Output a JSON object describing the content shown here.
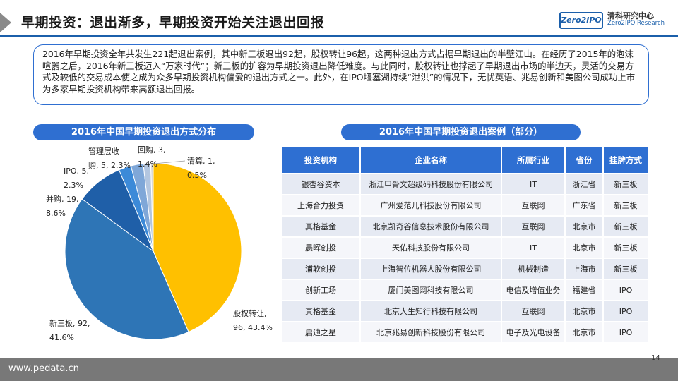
{
  "header": {
    "title": "早期投资：退出渐多，早期投资开始关注退出回报",
    "logo_text": "Zero2IPO",
    "brand_cn": "清科研究中心",
    "brand_en": "Zero2IPO Research"
  },
  "summary": "2016年早期投资全年共发生221起退出案例，其中新三板退出92起，股权转让96起，这两种退出方式占据早期退出的半壁江山。在经历了2015年的泡沫喧嚣之后，2016年新三板迈入“万家时代”；新三板的扩容为早期投资退出降低难度。与此同时，股权转让也撑起了早期退出市场的半边天，灵活的交易方式及较低的交易成本使之成为众多早期投资机构偏爱的退出方式之一。此外，在IPO堰塞湖持续“泄洪”的情况下，无忧英语、兆易创新和美图公司成功上市为多家早期投资机构带来高额退出回报。",
  "chart_data": {
    "type": "pie",
    "title": "2016年中国早期投资退出方式分布",
    "start": "12 o'clock, clockwise",
    "slices": [
      {
        "name": "股权转让",
        "value": 96,
        "percent": "43.4%",
        "label_lines": [
          "股权转让,",
          "96, 43.4%"
        ],
        "color": "#ffc000"
      },
      {
        "name": "新三板",
        "value": 92,
        "percent": "41.6%",
        "label_lines": [
          "新三板, 92,",
          "41.6%"
        ],
        "color": "#2e75b6"
      },
      {
        "name": "并购",
        "value": 19,
        "percent": "8.6%",
        "label_lines": [
          "并购, 19,",
          "8.6%"
        ],
        "color": "#1f5fa8"
      },
      {
        "name": "IPO",
        "value": 5,
        "percent": "2.3%",
        "label_lines": [
          "IPO, 5,",
          "2.3%"
        ],
        "color": "#3c8ad8"
      },
      {
        "name": "管理层收购",
        "value": 5,
        "percent": "2.3%",
        "label_lines": [
          "管理层收",
          "购, 5, 2.3%"
        ],
        "color": "#7fa7d8"
      },
      {
        "name": "回购",
        "value": 3,
        "percent": "1.4%",
        "label_lines": [
          "回购, 3,",
          "1.4%"
        ],
        "color": "#b3c6e0"
      },
      {
        "name": "清算",
        "value": 1,
        "percent": "0.5%",
        "label_lines": [
          "清算, 1,",
          "0.5%"
        ],
        "color": "#d9d9d9"
      }
    ]
  },
  "table": {
    "title": "2016年中国早期投资退出案例（部分）",
    "headers": [
      "投资机构",
      "企业名称",
      "所属行业",
      "省份",
      "挂牌方式"
    ],
    "rows": [
      [
        "银杏谷资本",
        "浙江甲骨文超级码科技股份有限公司",
        "IT",
        "浙江省",
        "新三板"
      ],
      [
        "上海合力投资",
        "广州爱范儿科技股份有限公司",
        "互联网",
        "广东省",
        "新三板"
      ],
      [
        "真格基金",
        "北京凯奇谷信息技术股份有限公司",
        "互联网",
        "北京市",
        "新三板"
      ],
      [
        "晨晖创投",
        "天佑科技股份有限公司",
        "IT",
        "北京市",
        "新三板"
      ],
      [
        "浦软创投",
        "上海智位机器人股份有限公司",
        "机械制造",
        "上海市",
        "新三板"
      ],
      [
        "创新工场",
        "厦门美图网科技有限公司",
        "电信及增值业务",
        "福建省",
        "IPO"
      ],
      [
        "真格基金",
        "北京大生知行科技有限公司",
        "互联网",
        "北京市",
        "IPO"
      ],
      [
        "启迪之星",
        "北京兆易创新科技股份有限公司",
        "电子及光电设备",
        "北京市",
        "IPO"
      ]
    ]
  },
  "footer": {
    "url": "www.pedata.cn",
    "page_number": "14"
  }
}
